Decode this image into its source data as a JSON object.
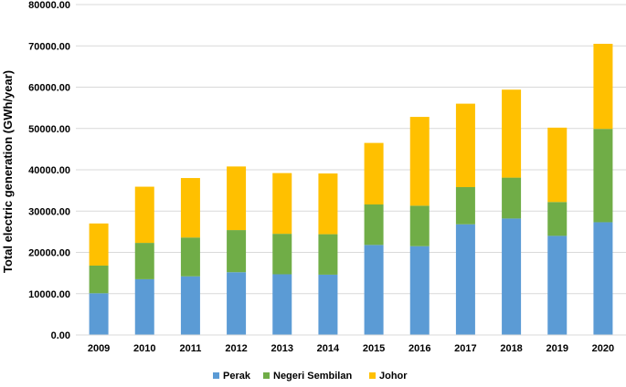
{
  "chart_data": {
    "type": "bar",
    "stacked": true,
    "title": "",
    "xlabel": "",
    "ylabel": "Total electric generation (GWh/year)",
    "ylim": [
      0,
      80000
    ],
    "ytick_step": 10000,
    "ytick_labels": [
      "0.00",
      "10000.00",
      "20000.00",
      "30000.00",
      "40000.00",
      "50000.00",
      "60000.00",
      "70000.00",
      "80000.00"
    ],
    "grid": true,
    "legend_position": "bottom-center",
    "categories": [
      "2009",
      "2010",
      "2011",
      "2012",
      "2013",
      "2014",
      "2015",
      "2016",
      "2017",
      "2018",
      "2019",
      "2020"
    ],
    "series": [
      {
        "name": "Perak",
        "color": "#5b9bd5",
        "values": [
          10100,
          13500,
          14200,
          15200,
          14700,
          14600,
          21800,
          21500,
          26800,
          28200,
          24000,
          27300
        ]
      },
      {
        "name": "Negeri Sembilan",
        "color": "#70ad47",
        "values": [
          6700,
          8800,
          9400,
          10200,
          9800,
          9800,
          9800,
          9800,
          9000,
          9900,
          8200,
          22600
        ]
      },
      {
        "name": "Johor",
        "color": "#ffc000",
        "values": [
          10200,
          13600,
          14400,
          15400,
          14700,
          14700,
          14900,
          21500,
          20200,
          21300,
          18000,
          20600
        ]
      }
    ]
  }
}
